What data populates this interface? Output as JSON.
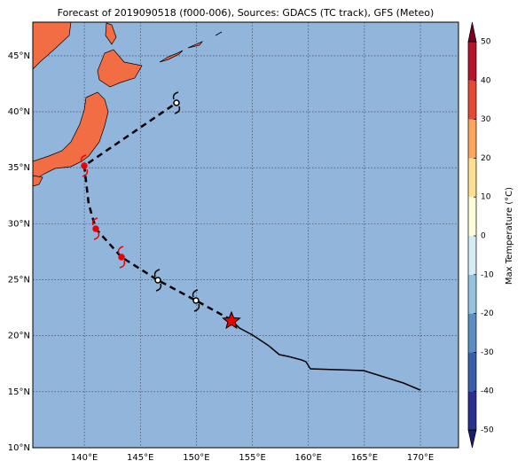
{
  "map": {
    "title": "Forecast of 2019090518 (f000-006), Sources: GDACS (TC track), GFS (Meteo)",
    "xlim": [
      135.4,
      173.4
    ],
    "ylim": [
      10,
      48
    ],
    "lon_ticks": [
      {
        "value": 140,
        "label": "140°E"
      },
      {
        "value": 145,
        "label": "145°E"
      },
      {
        "value": 150,
        "label": "150°E"
      },
      {
        "value": 155,
        "label": "155°E"
      },
      {
        "value": 160,
        "label": "160°E"
      },
      {
        "value": 165,
        "label": "165°E"
      },
      {
        "value": 170,
        "label": "170°E"
      }
    ],
    "lat_ticks": [
      {
        "value": 10,
        "label": "10°N"
      },
      {
        "value": 15,
        "label": "15°N"
      },
      {
        "value": 20,
        "label": "20°N"
      },
      {
        "value": 25,
        "label": "25°N"
      },
      {
        "value": 30,
        "label": "30°N"
      },
      {
        "value": 35,
        "label": "35°N"
      },
      {
        "value": 40,
        "label": "40°N"
      },
      {
        "value": 45,
        "label": "45°N"
      }
    ],
    "colorbar": {
      "label": "Max Temperature (°C)",
      "ticks": [
        -50,
        -40,
        -30,
        -20,
        -10,
        0,
        10,
        20,
        30,
        40,
        50
      ],
      "colors": [
        "#2b2f8f",
        "#3a5fa8",
        "#5b8fc2",
        "#94c3de",
        "#d4ecf4",
        "#fefed8",
        "#fee090",
        "#fca55d",
        "#e34a33",
        "#b5152b"
      ],
      "under_color": "#1d1d6e",
      "over_color": "#7a0020"
    }
  }
}
